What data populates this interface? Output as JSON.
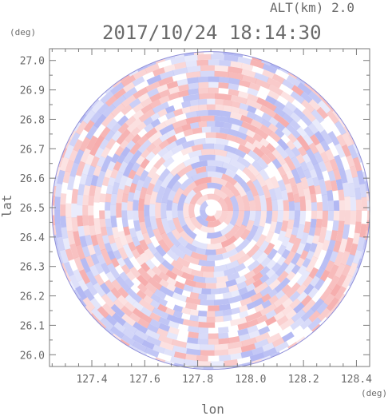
{
  "chart_data": {
    "type": "heatmap",
    "title": "2017/10/24 18:14:30",
    "subtitle": "ALT(km) 2.0",
    "xlabel": "lon",
    "ylabel": "lat",
    "x_unit": "(deg)",
    "y_unit": "(deg)",
    "xlim": [
      127.24,
      128.45
    ],
    "ylim": [
      25.96,
      27.04
    ],
    "x_ticks": [
      "127.4",
      "127.6",
      "127.8",
      "128.0",
      "128.2",
      "128.4"
    ],
    "y_ticks": [
      "27.0",
      "26.9",
      "26.8",
      "26.7",
      "26.6",
      "26.5",
      "26.4",
      "26.3",
      "26.2",
      "26.1",
      "26.0"
    ],
    "radar_center": {
      "lon": 127.85,
      "lat": 26.49
    },
    "radar_radius_deg": 0.54,
    "colors": {
      "positive": "#f5a8a8",
      "negative": "#aeb4f2",
      "axis": "#7a7a7a",
      "text": "#6a6a6a"
    },
    "grid": false
  }
}
